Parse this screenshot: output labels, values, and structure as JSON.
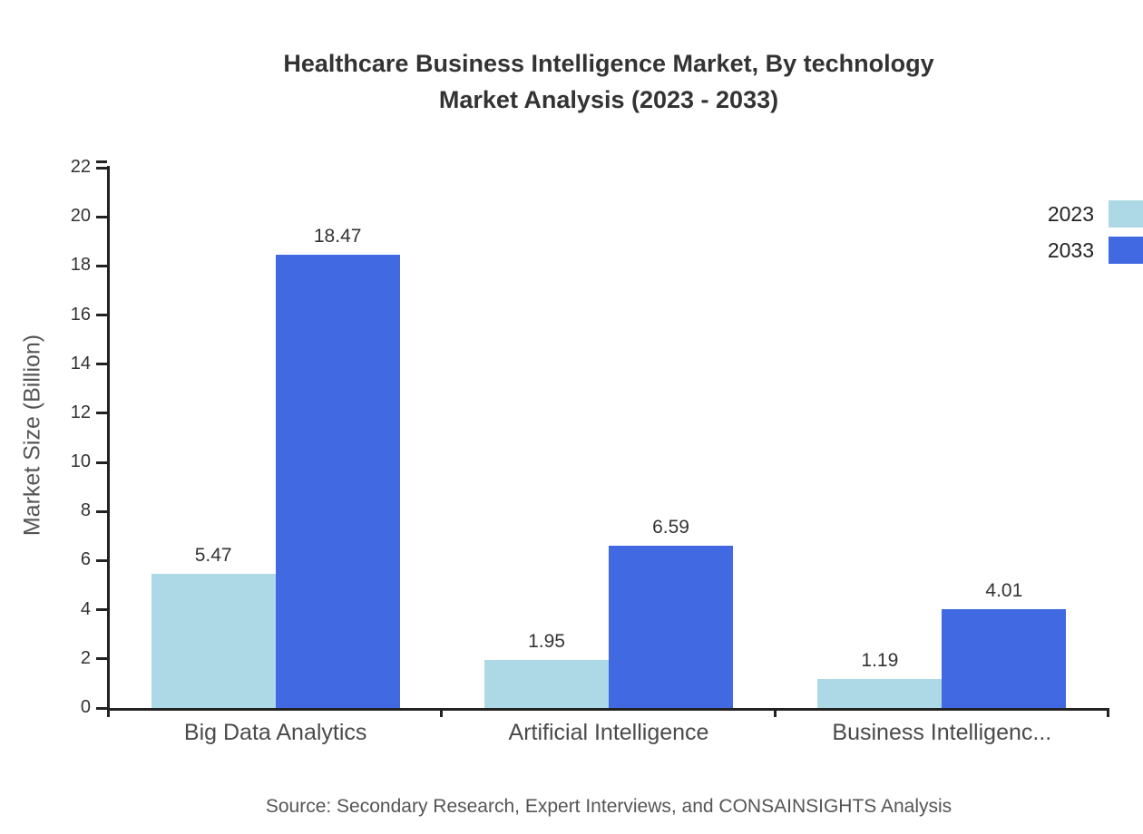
{
  "title": {
    "line1": "Healthcare Business Intelligence Market, By technology",
    "line2": "Market Analysis (2023 - 2033)"
  },
  "source": "Source: Secondary Research, Expert Interviews, and CONSAINSIGHTS Analysis",
  "chart_data": {
    "type": "bar",
    "title": "Healthcare Business Intelligence Market, By technology Market Analysis (2023 - 2033)",
    "categories": [
      "Big Data Analytics",
      "Artificial Intelligence",
      "Business Intelligenc..."
    ],
    "series": [
      {
        "name": "2023",
        "color": "#ADD8E6",
        "values": [
          5.47,
          1.95,
          1.19
        ]
      },
      {
        "name": "2033",
        "color": "#4169E1",
        "values": [
          18.47,
          6.59,
          4.01
        ]
      }
    ],
    "xlabel": "",
    "ylabel": "Market Size (Billion)",
    "ylim": [
      0,
      22
    ],
    "ytick_step": 2,
    "grid": false,
    "legend_position": "top-right",
    "value_labels": "on"
  }
}
